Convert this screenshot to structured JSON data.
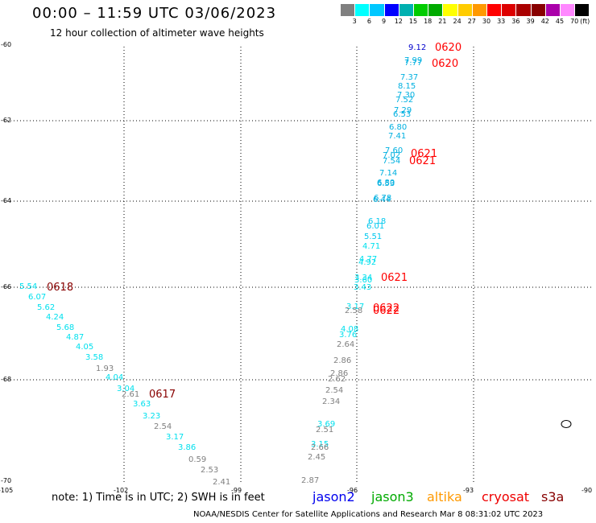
{
  "header": {
    "title": "00:00 – 11:59 UTC 03/06/2023",
    "subtitle": "12 hour collection of altimeter wave heights"
  },
  "scale": {
    "unit": "(ft)",
    "colors": [
      "#808080",
      "#00ffff",
      "#00c8ff",
      "#0000ff",
      "#00b0b0",
      "#00cc00",
      "#00aa00",
      "#ffff00",
      "#ffcc00",
      "#ff9900",
      "#ff0000",
      "#dd0000",
      "#aa0000",
      "#880000",
      "#aa00aa",
      "#ff88ff",
      "#000000"
    ],
    "labels": [
      "3",
      "6",
      "9",
      "12",
      "15",
      "18",
      "21",
      "24",
      "27",
      "30",
      "33",
      "36",
      "39",
      "42",
      "45",
      "70"
    ]
  },
  "axes": {
    "lat_labels": [
      "-60",
      "-62",
      "-64",
      "-66",
      "-68",
      "-70"
    ],
    "lon_labels": [
      "-105",
      "-102",
      "-99",
      "-96",
      "-93",
      "-90"
    ]
  },
  "passes": [
    {
      "label": "0620",
      "color": "#ff0000"
    },
    {
      "label": "0620",
      "color": "#ff0000"
    },
    {
      "label": "0621",
      "color": "#ff0000"
    },
    {
      "label": "0621",
      "color": "#ff0000"
    },
    {
      "label": "0621",
      "color": "#ff0000"
    },
    {
      "label": "0622",
      "color": "#ff0000"
    },
    {
      "label": "0622",
      "color": "#ff0000"
    },
    {
      "label": "0618",
      "color": "#880000"
    },
    {
      "label": "0617",
      "color": "#880000"
    }
  ],
  "observations": [
    {
      "v": "9.12",
      "c": "#0000cc"
    },
    {
      "v": "7.99",
      "c": "#00b0e0"
    },
    {
      "v": "7.77",
      "c": "#00b0e0"
    },
    {
      "v": "7.37",
      "c": "#00b0e0"
    },
    {
      "v": "8.15",
      "c": "#00b0e0"
    },
    {
      "v": "7.30",
      "c": "#00b0e0"
    },
    {
      "v": "7.52",
      "c": "#00b0e0"
    },
    {
      "v": "7.29",
      "c": "#00b0e0"
    },
    {
      "v": "6.53",
      "c": "#00b0e0"
    },
    {
      "v": "6.80",
      "c": "#00b0e0"
    },
    {
      "v": "7.41",
      "c": "#00b0e0"
    },
    {
      "v": "7.60",
      "c": "#00b0e0"
    },
    {
      "v": "7.02",
      "c": "#00b0e0"
    },
    {
      "v": "7.54",
      "c": "#00b0e0"
    },
    {
      "v": "7.14",
      "c": "#00b0e0"
    },
    {
      "v": "6.80",
      "c": "#00b0e0"
    },
    {
      "v": "6.53",
      "c": "#00b0e0"
    },
    {
      "v": "6.78",
      "c": "#00b0e0"
    },
    {
      "v": "6.44",
      "c": "#00b0e0"
    },
    {
      "v": "6.18",
      "c": "#00c8ee"
    },
    {
      "v": "6.01",
      "c": "#00c8ee"
    },
    {
      "v": "5.51",
      "c": "#00c8ee"
    },
    {
      "v": "4.71",
      "c": "#00e0ee"
    },
    {
      "v": "4.77",
      "c": "#00e0ee"
    },
    {
      "v": "4.92",
      "c": "#00e0ee"
    },
    {
      "v": "3.34",
      "c": "#00e0ee"
    },
    {
      "v": "3.60",
      "c": "#00e0ee"
    },
    {
      "v": "3.43",
      "c": "#00e0ee"
    },
    {
      "v": "3.17",
      "c": "#00e0ee"
    },
    {
      "v": "2.58",
      "c": "#808080"
    },
    {
      "v": "4.08",
      "c": "#00e0ee"
    },
    {
      "v": "3.76",
      "c": "#00e0ee"
    },
    {
      "v": "2.64",
      "c": "#808080"
    },
    {
      "v": "2.86",
      "c": "#808080"
    },
    {
      "v": "2.86",
      "c": "#808080"
    },
    {
      "v": "2.62",
      "c": "#808080"
    },
    {
      "v": "2.54",
      "c": "#808080"
    },
    {
      "v": "2.34",
      "c": "#808080"
    },
    {
      "v": "3.69",
      "c": "#00e0ee"
    },
    {
      "v": "2.51",
      "c": "#808080"
    },
    {
      "v": "3.15",
      "c": "#00e0ee"
    },
    {
      "v": "2.66",
      "c": "#808080"
    },
    {
      "v": "2.45",
      "c": "#808080"
    },
    {
      "v": "2.87",
      "c": "#808080"
    },
    {
      "v": "5.54",
      "c": "#00e0ee"
    },
    {
      "v": "6.07",
      "c": "#00e0ee"
    },
    {
      "v": "5.62",
      "c": "#00e0ee"
    },
    {
      "v": "4.24",
      "c": "#00e0ee"
    },
    {
      "v": "5.68",
      "c": "#00e0ee"
    },
    {
      "v": "4.87",
      "c": "#00e0ee"
    },
    {
      "v": "4.05",
      "c": "#00e0ee"
    },
    {
      "v": "3.58",
      "c": "#00e0ee"
    },
    {
      "v": "1.93",
      "c": "#808080"
    },
    {
      "v": "4.04",
      "c": "#00e0ee"
    },
    {
      "v": "3.04",
      "c": "#00e0ee"
    },
    {
      "v": "2.61",
      "c": "#808080"
    },
    {
      "v": "3.63",
      "c": "#00e0ee"
    },
    {
      "v": "3.23",
      "c": "#00e0ee"
    },
    {
      "v": "2.54",
      "c": "#808080"
    },
    {
      "v": "3.17",
      "c": "#00e0ee"
    },
    {
      "v": "3.86",
      "c": "#00e0ee"
    },
    {
      "v": "0.59",
      "c": "#808080"
    },
    {
      "v": "2.53",
      "c": "#808080"
    },
    {
      "v": "2.41",
      "c": "#808080"
    }
  ],
  "footer": {
    "note": "note: 1) Time is in UTC; 2) SWH is in feet",
    "satellites": [
      {
        "name": "jason2",
        "color": "#0000ee"
      },
      {
        "name": "jason3",
        "color": "#00aa00"
      },
      {
        "name": "altika",
        "color": "#ff9900"
      },
      {
        "name": "cryosat",
        "color": "#ee0000"
      },
      {
        "name": "s3a",
        "color": "#880000"
      }
    ],
    "credit": "NOAA/NESDIS Center for Satellite Applications and Research    Mar  8 08:31:02 UTC 2023"
  }
}
